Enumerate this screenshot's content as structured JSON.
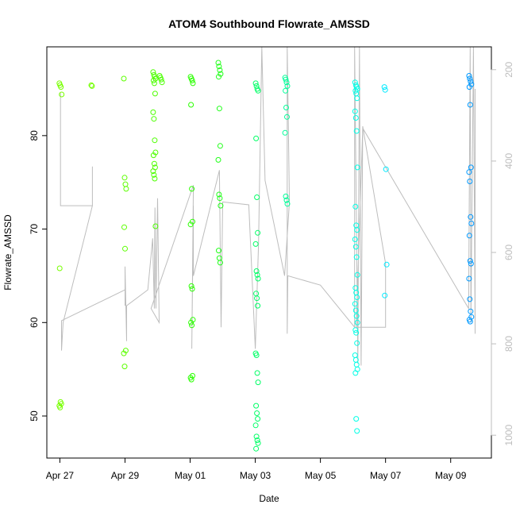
{
  "chart_data": {
    "type": "scatter",
    "title": "ATOM4 Southbound Flowrate_AMSSD",
    "xlabel": "Date",
    "ylabel": "Flowrate_AMSSD",
    "x_unit": "days since Apr 27",
    "xlim": [
      -0.4,
      13.25
    ],
    "ylim": [
      45.5,
      89.5
    ],
    "x_ticks": [
      {
        "value": 0,
        "label": "Apr 27"
      },
      {
        "value": 2,
        "label": "Apr 29"
      },
      {
        "value": 4,
        "label": "May 01"
      },
      {
        "value": 6,
        "label": "May 03"
      },
      {
        "value": 8,
        "label": "May 05"
      },
      {
        "value": 10,
        "label": "May 07"
      },
      {
        "value": 12,
        "label": "May 09"
      }
    ],
    "y_ticks": [
      {
        "value": 50,
        "label": "50"
      },
      {
        "value": 60,
        "label": "60"
      },
      {
        "value": 70,
        "label": "70"
      },
      {
        "value": 80,
        "label": "80"
      }
    ],
    "right_axis": {
      "range": [
        1050,
        150
      ],
      "ticks": [
        {
          "value": 200,
          "label": "200"
        },
        {
          "value": 400,
          "label": "400"
        },
        {
          "value": 600,
          "label": "600"
        },
        {
          "value": 800,
          "label": "800"
        },
        {
          "value": 1000,
          "label": "1000"
        }
      ]
    },
    "grid": false,
    "clusters": [
      {
        "x": 0.02,
        "color": "#77ff00",
        "y": [
          85.6,
          85.4,
          85.2,
          84.4,
          65.8,
          51.5,
          51.3,
          51.1,
          50.9
        ]
      },
      {
        "x": 1.0,
        "color": "#72ff00",
        "y": [
          85.4,
          85.3
        ]
      },
      {
        "x": 2.0,
        "color": "#5cff00",
        "y": [
          86.1,
          75.5,
          74.8,
          74.3,
          70.2,
          67.9,
          57.0,
          56.7,
          55.3
        ]
      },
      {
        "x": 2.9,
        "color": "#4dff00",
        "y": [
          86.8,
          86.5,
          86.3,
          86.1,
          85.9,
          85.6,
          84.5,
          82.5,
          81.8,
          79.5,
          78.2,
          77.9,
          77.0,
          76.6,
          76.2,
          75.8,
          75.4,
          70.3
        ]
      },
      {
        "x": 3.1,
        "color": "#4aff00",
        "y": [
          86.4,
          86.2,
          86.0,
          85.7
        ]
      },
      {
        "x": 4.05,
        "color": "#2aff00",
        "y": [
          86.3,
          86.1,
          85.9,
          85.6,
          83.3,
          74.3,
          70.8,
          70.5,
          63.9,
          63.6,
          60.3,
          60.0,
          59.7,
          54.3,
          54.1,
          53.9
        ]
      },
      {
        "x": 4.9,
        "color": "#21ff1a",
        "y": [
          87.8,
          87.4,
          87.0,
          86.6,
          86.3,
          82.9,
          78.9,
          77.4,
          73.7,
          73.3,
          72.5,
          67.7,
          66.9,
          66.4
        ]
      },
      {
        "x": 6.05,
        "color": "#00ff66",
        "y": [
          85.6,
          85.3,
          85.0,
          84.8,
          79.7,
          73.4,
          69.6,
          68.4,
          65.5,
          65.1,
          64.7,
          63.1,
          62.6,
          61.8,
          56.7,
          56.5,
          54.6,
          53.6,
          51.1,
          50.3,
          49.7,
          49.0,
          47.8,
          47.4,
          47.1,
          46.5
        ]
      },
      {
        "x": 6.95,
        "color": "#00ff99",
        "y": [
          86.2,
          86.0,
          85.7,
          85.3,
          84.8,
          83.0,
          82.0,
          80.3,
          73.5,
          73.1,
          72.7
        ]
      },
      {
        "x": 9.1,
        "color": "#00ffe6",
        "y": [
          85.7,
          85.4,
          85.2,
          85.0,
          84.8,
          84.5,
          84.0,
          82.6,
          81.9,
          80.5,
          76.6,
          72.4,
          70.4,
          69.9,
          68.9,
          68.1,
          67.0,
          65.1,
          63.7,
          63.2,
          62.7,
          62.0,
          61.3,
          60.7,
          60.0,
          59.2,
          58.9,
          57.8,
          56.5,
          56.0,
          55.5,
          55.0,
          54.6,
          49.7,
          48.4
        ]
      },
      {
        "x": 10.0,
        "color": "#00eaff",
        "y": [
          85.2,
          84.9,
          76.4,
          66.2,
          62.9
        ]
      },
      {
        "x": 12.6,
        "color": "#0099ff",
        "y": [
          86.4,
          86.1,
          85.8,
          85.5,
          85.2,
          83.3,
          76.6,
          76.1,
          75.1,
          71.3,
          70.6,
          69.3,
          66.6,
          66.3,
          64.7,
          62.5,
          61.2,
          60.6,
          60.3,
          60.1
        ]
      }
    ],
    "reference_line": {
      "color": "#bdbdbd",
      "points": [
        [
          0.0,
          84.5
        ],
        [
          0.02,
          84.5
        ],
        [
          0.02,
          72.5
        ],
        [
          0.5,
          72.5
        ],
        [
          1.0,
          72.5
        ],
        [
          1.0,
          76.7
        ],
        [
          1.0,
          72.5
        ],
        [
          0.1,
          60.0
        ],
        [
          0.05,
          57.0
        ],
        [
          0.05,
          60.2
        ],
        [
          2.0,
          63.5
        ],
        [
          2.0,
          61.8
        ],
        [
          2.0,
          66.0
        ],
        [
          2.05,
          58.0
        ],
        [
          2.05,
          61.8
        ],
        [
          2.7,
          63.5
        ],
        [
          2.85,
          69.0
        ],
        [
          2.9,
          61.5
        ],
        [
          2.92,
          72.3
        ],
        [
          2.95,
          61.5
        ],
        [
          3.0,
          73.3
        ],
        [
          3.05,
          60.0
        ],
        [
          2.8,
          61.5
        ],
        [
          4.1,
          74.7
        ],
        [
          4.05,
          57.2
        ],
        [
          4.1,
          72.5
        ],
        [
          4.1,
          65.0
        ],
        [
          4.9,
          76.3
        ],
        [
          4.95,
          59.5
        ],
        [
          5.0,
          72.9
        ],
        [
          5.8,
          72.6
        ],
        [
          6.0,
          57.2
        ],
        [
          6.1,
          68.5
        ],
        [
          6.2,
          89.5
        ],
        [
          6.3,
          75.2
        ],
        [
          6.9,
          65.0
        ],
        [
          7.05,
          72.9
        ],
        [
          6.98,
          89.5
        ],
        [
          6.98,
          58.8
        ],
        [
          7.0,
          65.0
        ],
        [
          8.0,
          64.0
        ],
        [
          9.05,
          59.5
        ],
        [
          9.05,
          89.5
        ],
        [
          9.15,
          55.6
        ],
        [
          9.2,
          89.5
        ],
        [
          9.25,
          55.4
        ],
        [
          9.3,
          81.0
        ],
        [
          10.0,
          66.3
        ],
        [
          10.0,
          59.5
        ],
        [
          9.1,
          59.5
        ],
        [
          9.3,
          80.8
        ],
        [
          12.55,
          61.5
        ],
        [
          12.6,
          89.5
        ],
        [
          12.62,
          60.0
        ],
        [
          12.7,
          89.5
        ],
        [
          12.75,
          58.8
        ],
        [
          12.75,
          85.0
        ]
      ]
    }
  }
}
